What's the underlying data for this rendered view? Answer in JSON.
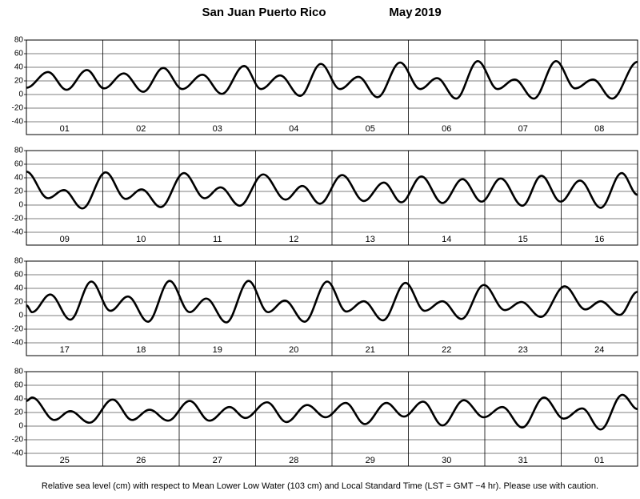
{
  "title": {
    "place": "San Juan Puerto Rico",
    "month": "May",
    "year": "2019"
  },
  "note": "Relative sea level (cm) with respect to Mean Lower Low Water (103 cm) and Local Standard Time (LST = GMT −4 hr). Please use with caution.",
  "chart_data": [
    {
      "type": "line",
      "categories": [
        "01",
        "02",
        "03",
        "04",
        "05",
        "06",
        "07",
        "08"
      ],
      "xlim": [
        0,
        192
      ],
      "ylim": [
        -40,
        80
      ],
      "yticks": [
        -40,
        -20,
        0,
        20,
        40,
        60,
        80
      ],
      "grid": true,
      "color": "#000000",
      "x": [
        0,
        6.8,
        12.6,
        19,
        24.4,
        30.6,
        36.7,
        43,
        49,
        55.3,
        61.4,
        68.4,
        73.7,
        79.7,
        86,
        92.5,
        98.5,
        104.3,
        110.3,
        117.4,
        123.7,
        129,
        135,
        141.8,
        148,
        153.4,
        159.4,
        166.4,
        172.4,
        178,
        184,
        192
      ],
      "values": [
        10,
        33,
        7,
        36,
        9,
        31,
        4,
        39,
        8,
        29,
        1,
        42,
        8,
        28,
        -2,
        45,
        8,
        26,
        -4,
        47,
        8,
        24,
        -6,
        49,
        8,
        22,
        -6,
        49,
        9,
        22,
        -6,
        48
      ]
    },
    {
      "type": "line",
      "categories": [
        "09",
        "10",
        "11",
        "12",
        "13",
        "14",
        "15",
        "16"
      ],
      "xlim": [
        0,
        192
      ],
      "ylim": [
        -40,
        80
      ],
      "yticks": [
        -40,
        -20,
        0,
        20,
        40,
        60,
        80
      ],
      "grid": true,
      "color": "#000000",
      "x": [
        0,
        6.8,
        11.8,
        17.6,
        24.9,
        31.2,
        36.2,
        42.2,
        49.5,
        56,
        61,
        67,
        74.4,
        81.4,
        86.7,
        92.2,
        99.2,
        106,
        112.3,
        117.8,
        124.1,
        130.7,
        137,
        143,
        149,
        155.8,
        161.8,
        167.8,
        173.9,
        180.4,
        187,
        192
      ],
      "values": [
        49,
        10,
        22,
        -5,
        48,
        9,
        23,
        -3,
        47,
        10,
        26,
        -1,
        45,
        8,
        28,
        2,
        44,
        6,
        33,
        4,
        42,
        3,
        38,
        5,
        39,
        -1,
        43,
        5,
        36,
        -4,
        47,
        15
      ]
    },
    {
      "type": "line",
      "categories": [
        "17",
        "18",
        "19",
        "20",
        "21",
        "22",
        "23",
        "24"
      ],
      "xlim": [
        0,
        192
      ],
      "ylim": [
        -40,
        80
      ],
      "yticks": [
        -40,
        -20,
        0,
        20,
        40,
        60,
        80
      ],
      "grid": true,
      "color": "#000000",
      "x": [
        0,
        1.8,
        7.5,
        13.8,
        20.4,
        26.4,
        31.9,
        38.2,
        45,
        51.3,
        56.5,
        62.8,
        69.8,
        75.9,
        81.2,
        87.4,
        94.5,
        100.5,
        106,
        112,
        119.1,
        125.1,
        130.7,
        136.7,
        143.7,
        150.3,
        155.5,
        161.6,
        169.1,
        175.6,
        180.4,
        186.4,
        192
      ],
      "values": [
        15,
        5,
        31,
        -6,
        50,
        7,
        28,
        -9,
        51,
        5,
        25,
        -10,
        51,
        5,
        22,
        -9,
        50,
        6,
        21,
        -7,
        48,
        7,
        21,
        -5,
        45,
        8,
        20,
        -2,
        43,
        9,
        21,
        1,
        35
      ]
    },
    {
      "type": "line",
      "categories": [
        "25",
        "26",
        "27",
        "28",
        "29",
        "30",
        "31",
        "01"
      ],
      "xlim": [
        0,
        192
      ],
      "ylim": [
        -40,
        80
      ],
      "yticks": [
        -40,
        -20,
        0,
        20,
        40,
        60,
        80
      ],
      "grid": true,
      "color": "#000000",
      "x": [
        0,
        1.8,
        8.8,
        13.8,
        19.8,
        27.1,
        33.2,
        38.7,
        44.5,
        51.3,
        57.5,
        63.8,
        68.8,
        75.6,
        81.7,
        88.2,
        94,
        100.3,
        106.3,
        113.1,
        118.6,
        124.6,
        130.7,
        137.4,
        143.7,
        149.5,
        155.8,
        162.6,
        168.8,
        174.6,
        180.4,
        187.2,
        192
      ],
      "values": [
        37,
        42,
        9,
        22,
        5,
        39,
        9,
        24,
        8,
        37,
        8,
        28,
        12,
        35,
        6,
        31,
        13,
        34,
        3,
        34,
        14,
        36,
        1,
        38,
        13,
        28,
        -2,
        42,
        11,
        26,
        -5,
        46,
        25
      ]
    }
  ]
}
